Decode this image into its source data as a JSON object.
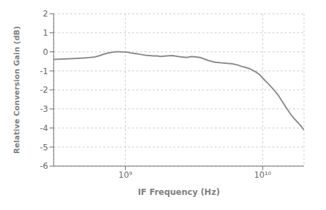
{
  "chart_data": {
    "type": "line",
    "xlabel": "IF Frequency (Hz)",
    "ylabel": "Relative Conversion Gain (dB)",
    "log": "x",
    "grid": true,
    "color": "#888888",
    "xlim": [
      300000000.0,
      20000000000.0
    ],
    "ylim": [
      -6,
      2
    ],
    "yticks": [
      -6,
      -5,
      -4,
      -3,
      -2,
      -1,
      0,
      1,
      2
    ],
    "xticks": [
      {
        "value": 1000000000.0,
        "label": "10⁹"
      },
      {
        "value": 10000000000.0,
        "label": "10¹⁰"
      }
    ],
    "x": [
      300000000.0,
      350000000.0,
      400000000.0,
      450000000.0,
      500000000.0,
      550000000.0,
      600000000.0,
      650000000.0,
      700000000.0,
      750000000.0,
      800000000.0,
      850000000.0,
      900000000.0,
      950000000.0,
      1000000000.0,
      1050000000.0,
      1100000000.0,
      1200000000.0,
      1300000000.0,
      1400000000.0,
      1500000000.0,
      1600000000.0,
      1700000000.0,
      1800000000.0,
      2000000000.0,
      2200000000.0,
      2500000000.0,
      2800000000.0,
      3000000000.0,
      3200000000.0,
      3500000000.0,
      4000000000.0,
      4500000000.0,
      5000000000.0,
      5500000000.0,
      6000000000.0,
      6500000000.0,
      7000000000.0,
      7500000000.0,
      8000000000.0,
      8500000000.0,
      9000000000.0,
      9500000000.0,
      10000000000.0,
      11000000000.0,
      12000000000.0,
      13000000000.0,
      14000000000.0,
      15000000000.0,
      16000000000.0,
      17000000000.0,
      18000000000.0,
      19000000000.0,
      20000000000.0
    ],
    "values": [
      -0.4,
      -0.38,
      -0.36,
      -0.34,
      -0.32,
      -0.3,
      -0.27,
      -0.2,
      -0.12,
      -0.06,
      -0.02,
      0.0,
      0.0,
      -0.01,
      -0.01,
      -0.03,
      -0.06,
      -0.1,
      -0.14,
      -0.18,
      -0.2,
      -0.22,
      -0.22,
      -0.24,
      -0.22,
      -0.2,
      -0.26,
      -0.3,
      -0.25,
      -0.26,
      -0.3,
      -0.45,
      -0.55,
      -0.58,
      -0.6,
      -0.63,
      -0.68,
      -0.76,
      -0.82,
      -0.88,
      -0.98,
      -1.08,
      -1.2,
      -1.38,
      -1.68,
      -1.98,
      -2.28,
      -2.65,
      -2.98,
      -3.28,
      -3.52,
      -3.7,
      -3.9,
      -4.1
    ]
  }
}
